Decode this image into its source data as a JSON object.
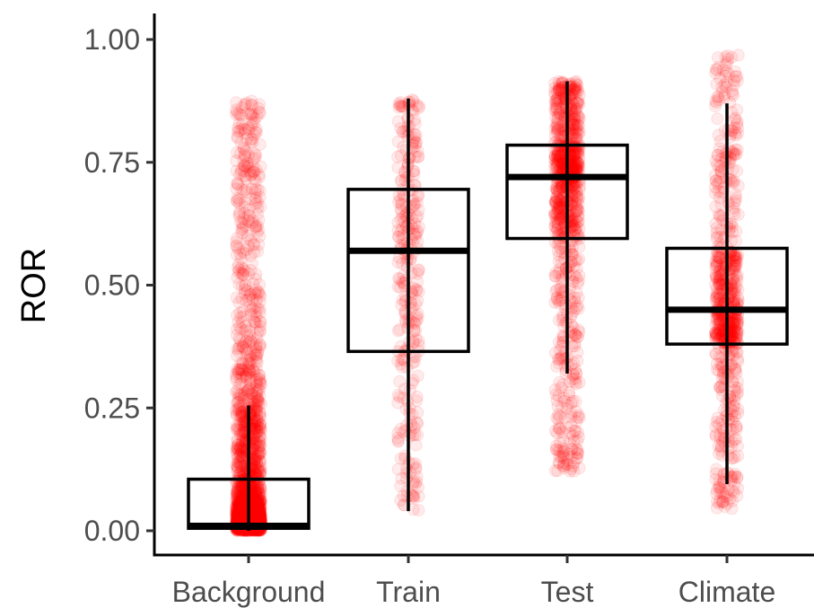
{
  "chart_data": {
    "type": "box",
    "ylabel": "ROR",
    "xlabel": "",
    "ylim": [
      -0.05,
      1.05
    ],
    "yticks": [
      "0.00",
      "0.25",
      "0.50",
      "0.75",
      "1.00"
    ],
    "categories": [
      "Background",
      "Train",
      "Test",
      "Climate"
    ],
    "boxes": [
      {
        "category": "Background",
        "whisker_low": 0.0,
        "q1": 0.005,
        "median": 0.01,
        "q3": 0.105,
        "whisker_high": 0.255,
        "min": 0.0,
        "max": 0.88
      },
      {
        "category": "Train",
        "whisker_low": 0.04,
        "q1": 0.365,
        "median": 0.57,
        "q3": 0.695,
        "whisker_high": 0.88,
        "min": 0.04,
        "max": 0.88
      },
      {
        "category": "Test",
        "whisker_low": 0.32,
        "q1": 0.595,
        "median": 0.72,
        "q3": 0.785,
        "whisker_high": 0.915,
        "min": 0.12,
        "max": 0.915
      },
      {
        "category": "Climate",
        "whisker_low": 0.095,
        "q1": 0.38,
        "median": 0.45,
        "q3": 0.575,
        "whisker_high": 0.87,
        "min": 0.045,
        "max": 0.97
      }
    ],
    "points_color": "#ff0000",
    "box_color": "#000000",
    "grid": false,
    "legend": "none"
  }
}
